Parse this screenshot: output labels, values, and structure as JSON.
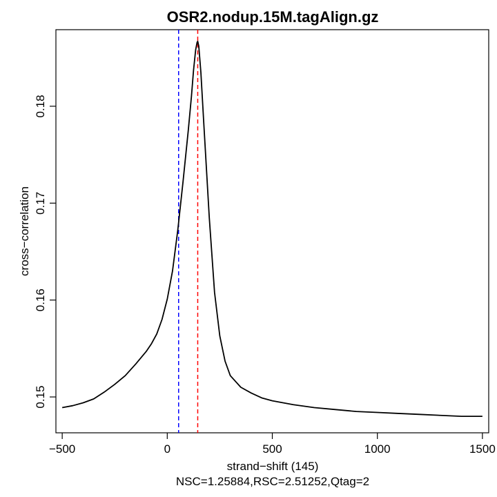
{
  "chart_data": {
    "type": "line",
    "title": "OSR2.nodup.15M.tagAlign.gz",
    "xlabel": "strand−shift (145)",
    "ylabel": "cross−correlation",
    "subtitle": "NSC=1.25884,RSC=2.51252,Qtag=2",
    "xlim": [
      -530,
      1530
    ],
    "ylim": [
      0.1463,
      0.1879
    ],
    "xticks": [
      -500,
      0,
      500,
      1000,
      1500
    ],
    "xtick_labels": [
      "−500",
      "0",
      "500",
      "1000",
      "1500"
    ],
    "yticks": [
      0.15,
      0.16,
      0.17,
      0.18
    ],
    "ytick_labels": [
      "0.15",
      "0.16",
      "0.17",
      "0.18"
    ],
    "grid": false,
    "vlines": [
      {
        "x": 54,
        "color": "#0000ff",
        "style": "dashed"
      },
      {
        "x": 145,
        "color": "#ff0000",
        "style": "dashed"
      }
    ],
    "series": [
      {
        "color": "#000000",
        "x": [
          -500,
          -450,
          -400,
          -350,
          -300,
          -250,
          -200,
          -150,
          -100,
          -75,
          -50,
          -25,
          0,
          25,
          50,
          75,
          100,
          115,
          125,
          135,
          142,
          145,
          150,
          160,
          175,
          200,
          225,
          250,
          275,
          300,
          350,
          400,
          450,
          500,
          600,
          700,
          800,
          900,
          1000,
          1100,
          1200,
          1300,
          1400,
          1500
        ],
        "y": [
          0.1489,
          0.1491,
          0.1494,
          0.1498,
          0.1505,
          0.1513,
          0.1522,
          0.1534,
          0.1547,
          0.1555,
          0.1565,
          0.158,
          0.1601,
          0.163,
          0.1672,
          0.1722,
          0.1775,
          0.181,
          0.1837,
          0.1858,
          0.1866,
          0.1867,
          0.1862,
          0.1835,
          0.1778,
          0.1685,
          0.1608,
          0.1563,
          0.1537,
          0.1522,
          0.151,
          0.1504,
          0.1499,
          0.1496,
          0.1492,
          0.1489,
          0.1487,
          0.1485,
          0.1484,
          0.1483,
          0.1482,
          0.1481,
          0.148,
          0.148
        ]
      }
    ]
  }
}
